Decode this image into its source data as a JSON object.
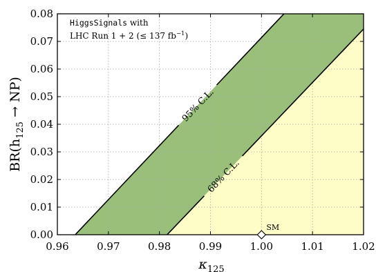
{
  "chart_data": {
    "type": "area",
    "xlabel": "κ",
    "xlabel_sub": "125",
    "ylabel_prefix": "BR(h",
    "ylabel_sub": "125",
    "ylabel_suffix": " → NP)",
    "xlim": [
      0.96,
      1.02
    ],
    "ylim": [
      0.0,
      0.08
    ],
    "x_ticks": [
      0.96,
      0.97,
      0.98,
      0.99,
      1.0,
      1.01,
      1.02
    ],
    "x_tick_labels": [
      "0.96",
      "0.97",
      "0.98",
      "0.99",
      "1.00",
      "1.01",
      "1.02"
    ],
    "y_ticks": [
      0.0,
      0.01,
      0.02,
      0.03,
      0.04,
      0.05,
      0.06,
      0.07,
      0.08
    ],
    "y_tick_labels": [
      "0.00",
      "0.01",
      "0.02",
      "0.03",
      "0.04",
      "0.05",
      "0.06",
      "0.07",
      "0.08"
    ],
    "grid": true,
    "legend": {
      "line1_mono": "HiggsSignals",
      "line1_rest": " with",
      "line2": "LHC Run 1 + 2 (≤ 137 fb",
      "line2_sup": "−1",
      "line2_end": ")"
    },
    "series": [
      {
        "name": "95% C.L.",
        "color": "#99bf7a",
        "boundary": [
          [
            0.9635,
            0.0
          ],
          [
            1.0044,
            0.08
          ]
        ]
      },
      {
        "name": "68% C.L.",
        "color": "#fefcc7",
        "boundary": [
          [
            0.9815,
            0.0
          ],
          [
            1.02,
            0.0745
          ]
        ]
      }
    ],
    "points": [
      {
        "name": "SM",
        "x": 1.0,
        "y": 0.0
      }
    ]
  }
}
